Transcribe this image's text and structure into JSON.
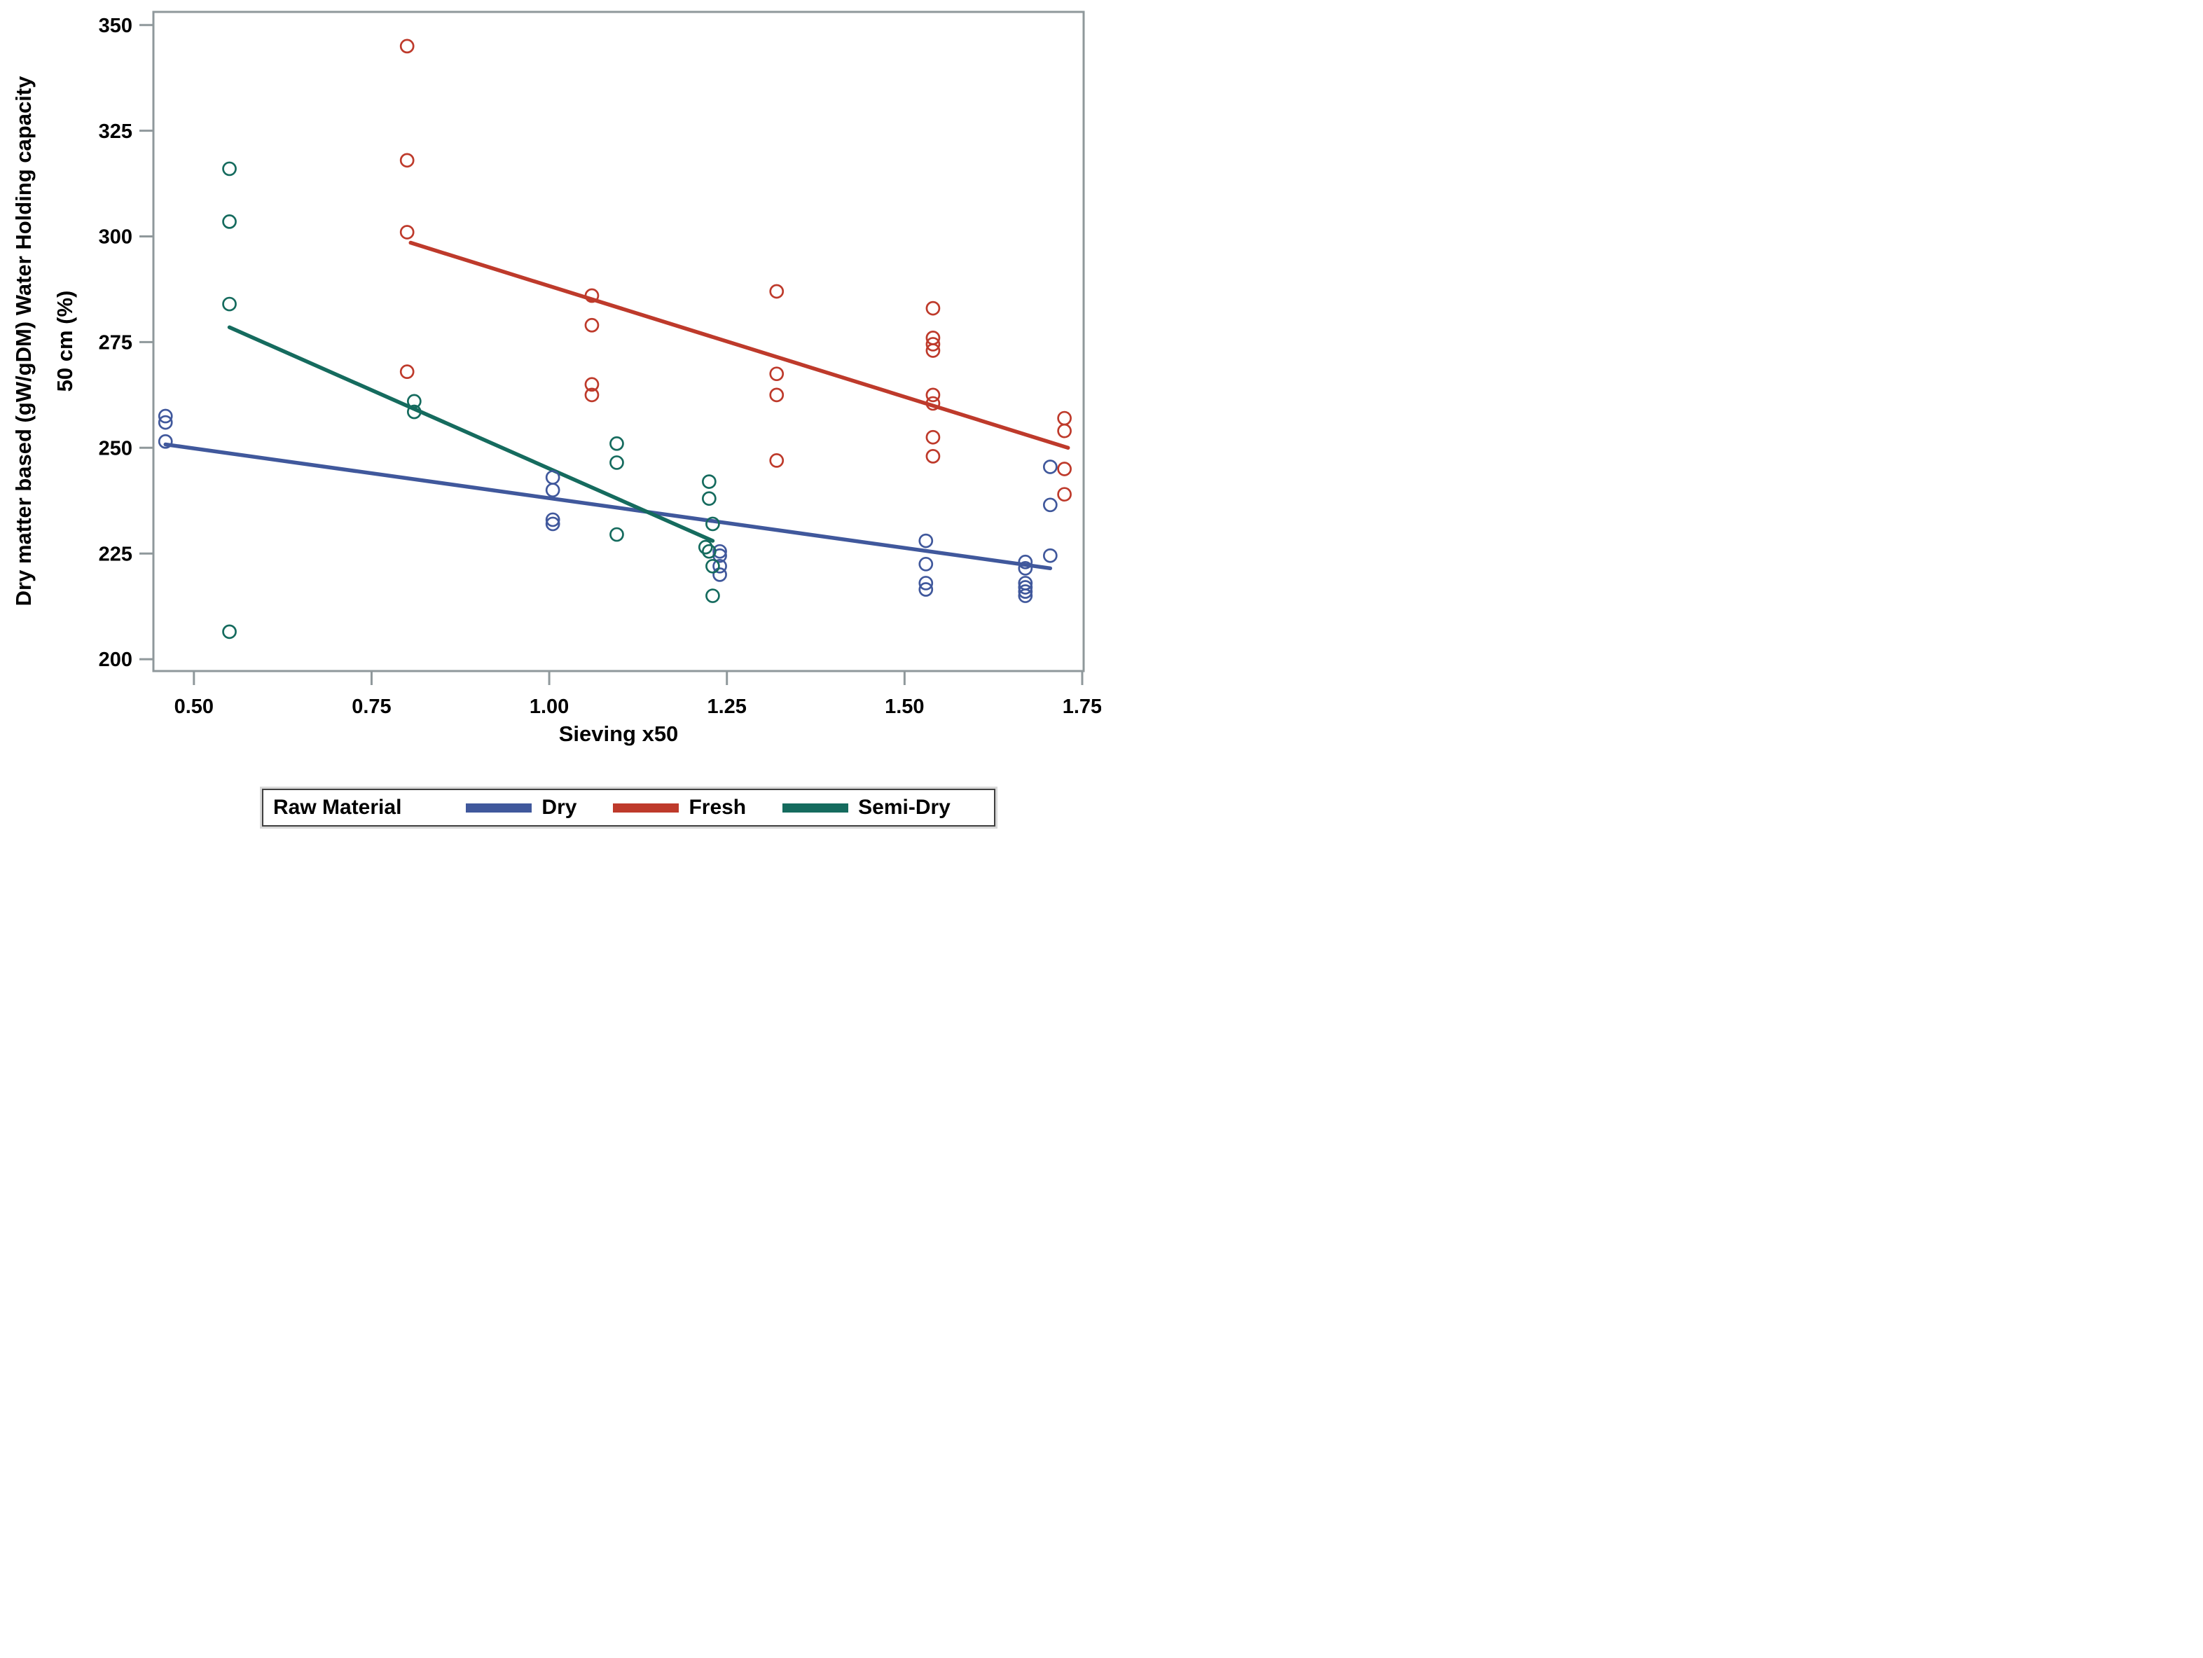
{
  "figure": {
    "legend": {
      "title": "Raw Material"
    }
  },
  "chart_data": {
    "type": "scatter",
    "title": "",
    "xlabel": "Sieving x50",
    "ylabel_lines": [
      "Dry matter based (gW/gDM) Water Holding capacity",
      "50 cm (%)"
    ],
    "xlim": [
      0.443,
      1.752
    ],
    "ylim": [
      197.2,
      353.1
    ],
    "grid": false,
    "legend_position": "bottom",
    "x_ticks": [
      {
        "value": 0.5,
        "label": "0.50"
      },
      {
        "value": 0.75,
        "label": "0.75"
      },
      {
        "value": 1.0,
        "label": "1.00"
      },
      {
        "value": 1.25,
        "label": "1.25"
      },
      {
        "value": 1.5,
        "label": "1.50"
      },
      {
        "value": 1.75,
        "label": "1.75"
      }
    ],
    "y_ticks": [
      {
        "value": 200,
        "label": "200"
      },
      {
        "value": 225,
        "label": "225"
      },
      {
        "value": 250,
        "label": "250"
      },
      {
        "value": 275,
        "label": "275"
      },
      {
        "value": 300,
        "label": "300"
      },
      {
        "value": 325,
        "label": "325"
      },
      {
        "value": 350,
        "label": "350"
      }
    ],
    "series": [
      {
        "name": "Dry",
        "color": "#40589C",
        "marker": "open-circle",
        "points": [
          [
            0.46,
            257.5
          ],
          [
            0.46,
            256.0
          ],
          [
            0.46,
            251.5
          ],
          [
            1.005,
            243.0
          ],
          [
            1.005,
            240.0
          ],
          [
            1.005,
            233.0
          ],
          [
            1.005,
            232.0
          ],
          [
            1.24,
            225.5
          ],
          [
            1.24,
            224.5
          ],
          [
            1.24,
            222.0
          ],
          [
            1.24,
            220.0
          ],
          [
            1.53,
            228.0
          ],
          [
            1.53,
            222.5
          ],
          [
            1.53,
            218.0
          ],
          [
            1.53,
            216.5
          ],
          [
            1.67,
            223.0
          ],
          [
            1.67,
            221.5
          ],
          [
            1.67,
            218.0
          ],
          [
            1.67,
            217.0
          ],
          [
            1.67,
            216.0
          ],
          [
            1.67,
            215.0
          ],
          [
            1.705,
            245.5
          ],
          [
            1.705,
            236.5
          ],
          [
            1.705,
            224.5
          ]
        ],
        "trend_line": {
          "start": [
            0.46,
            250.8
          ],
          "end": [
            1.705,
            221.5
          ]
        }
      },
      {
        "name": "Fresh",
        "color": "#BE3A2B",
        "marker": "open-circle",
        "points": [
          [
            0.8,
            345.0
          ],
          [
            0.8,
            318.0
          ],
          [
            0.8,
            301.0
          ],
          [
            0.8,
            268.0
          ],
          [
            1.06,
            286.0
          ],
          [
            1.06,
            279.0
          ],
          [
            1.06,
            265.0
          ],
          [
            1.06,
            262.5
          ],
          [
            1.32,
            287.0
          ],
          [
            1.32,
            267.5
          ],
          [
            1.32,
            262.5
          ],
          [
            1.32,
            247.0
          ],
          [
            1.54,
            283.0
          ],
          [
            1.54,
            276.0
          ],
          [
            1.54,
            274.5
          ],
          [
            1.54,
            273.0
          ],
          [
            1.54,
            262.5
          ],
          [
            1.54,
            260.5
          ],
          [
            1.54,
            252.5
          ],
          [
            1.54,
            248.0
          ],
          [
            1.725,
            257.0
          ],
          [
            1.725,
            254.0
          ],
          [
            1.725,
            245.0
          ],
          [
            1.725,
            239.0
          ]
        ],
        "trend_line": {
          "start": [
            0.805,
            298.5
          ],
          "end": [
            1.73,
            250.0
          ]
        }
      },
      {
        "name": "Semi-Dry",
        "color": "#156B5E",
        "marker": "open-circle",
        "points": [
          [
            0.55,
            316.0
          ],
          [
            0.55,
            303.5
          ],
          [
            0.55,
            284.0
          ],
          [
            0.55,
            206.5
          ],
          [
            0.81,
            261.0
          ],
          [
            0.81,
            258.5
          ],
          [
            1.095,
            251.0
          ],
          [
            1.095,
            246.5
          ],
          [
            1.095,
            229.5
          ],
          [
            1.225,
            242.0
          ],
          [
            1.225,
            238.0
          ],
          [
            1.23,
            232.0
          ],
          [
            1.22,
            226.5
          ],
          [
            1.225,
            225.5
          ],
          [
            1.23,
            222.0
          ],
          [
            1.23,
            215.0
          ]
        ],
        "trend_line": {
          "start": [
            0.55,
            278.5
          ],
          "end": [
            1.23,
            228.0
          ]
        }
      }
    ],
    "styles": {
      "axis_color": "#8F989B",
      "text_color": "#000000",
      "background": "#FFFFFF",
      "marker_radius": 9,
      "marker_stroke_width": 2.7,
      "trend_line_width": 5.5,
      "border_width": 3,
      "tick_length": 20
    }
  }
}
